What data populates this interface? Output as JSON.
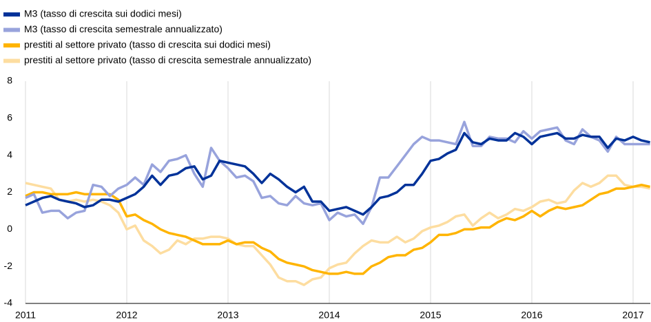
{
  "chart_data": {
    "type": "line",
    "x": [
      2011.0,
      2011.083,
      2011.167,
      2011.25,
      2011.333,
      2011.417,
      2011.5,
      2011.583,
      2011.667,
      2011.75,
      2011.833,
      2011.917,
      2012.0,
      2012.083,
      2012.167,
      2012.25,
      2012.333,
      2012.417,
      2012.5,
      2012.583,
      2012.667,
      2012.75,
      2012.833,
      2012.917,
      2013.0,
      2013.083,
      2013.167,
      2013.25,
      2013.333,
      2013.417,
      2013.5,
      2013.583,
      2013.667,
      2013.75,
      2013.833,
      2013.917,
      2014.0,
      2014.083,
      2014.167,
      2014.25,
      2014.333,
      2014.417,
      2014.5,
      2014.583,
      2014.667,
      2014.75,
      2014.833,
      2014.917,
      2015.0,
      2015.083,
      2015.167,
      2015.25,
      2015.333,
      2015.417,
      2015.5,
      2015.583,
      2015.667,
      2015.75,
      2015.833,
      2015.917,
      2016.0,
      2016.083,
      2016.167,
      2016.25,
      2016.333,
      2016.417,
      2016.5,
      2016.583,
      2016.667,
      2016.75,
      2016.833,
      2016.917,
      2017.0,
      2017.083,
      2017.167
    ],
    "series": [
      {
        "name": "M3 (tasso di crescita sui dodici mesi)",
        "color": "#003299",
        "values": [
          1.3,
          1.5,
          1.7,
          1.8,
          1.6,
          1.5,
          1.4,
          1.2,
          1.3,
          1.6,
          1.6,
          1.5,
          1.7,
          1.9,
          2.3,
          2.9,
          2.4,
          2.9,
          3.0,
          3.3,
          3.4,
          2.7,
          2.9,
          3.7,
          3.6,
          3.5,
          3.4,
          3.0,
          2.5,
          3.0,
          2.7,
          2.3,
          2.0,
          2.3,
          1.5,
          1.5,
          1.0,
          1.1,
          1.2,
          1.0,
          0.8,
          1.2,
          1.7,
          1.8,
          2.0,
          2.4,
          2.4,
          3.0,
          3.7,
          3.8,
          4.1,
          4.3,
          5.2,
          4.7,
          4.6,
          4.9,
          4.8,
          4.8,
          5.2,
          5.0,
          4.6,
          5.0,
          5.1,
          5.2,
          4.9,
          4.9,
          5.1,
          5.0,
          5.0,
          4.4,
          4.9,
          4.8,
          5.0,
          4.8,
          4.7
        ]
      },
      {
        "name": "M3 (tasso di crescita semestrale annualizzato)",
        "color": "#98a3dc",
        "values": [
          1.7,
          1.9,
          0.9,
          1.0,
          1.0,
          0.6,
          0.9,
          1.0,
          2.4,
          2.3,
          1.8,
          2.2,
          2.4,
          2.8,
          2.4,
          3.5,
          3.1,
          3.7,
          3.8,
          4.0,
          3.0,
          2.3,
          4.4,
          3.7,
          3.3,
          2.8,
          2.9,
          2.6,
          1.7,
          1.8,
          1.4,
          1.3,
          1.8,
          1.4,
          1.3,
          1.4,
          0.5,
          0.9,
          0.7,
          0.8,
          0.3,
          1.2,
          2.8,
          2.8,
          3.4,
          4.0,
          4.6,
          5.0,
          4.8,
          4.8,
          4.7,
          4.6,
          5.8,
          4.5,
          4.5,
          5.0,
          4.9,
          4.9,
          4.7,
          5.3,
          4.9,
          5.3,
          5.4,
          5.5,
          4.8,
          4.6,
          5.4,
          5.0,
          4.8,
          4.2,
          5.0,
          4.6,
          4.6,
          4.6,
          4.6
        ]
      },
      {
        "name": "prestiti al settore privato (tasso di crescita sui dodici mesi)",
        "color": "#ffb400",
        "values": [
          1.8,
          2.0,
          2.0,
          1.9,
          1.9,
          1.9,
          2.0,
          1.9,
          1.9,
          1.9,
          1.9,
          1.6,
          0.7,
          0.8,
          0.5,
          0.3,
          0.0,
          -0.2,
          -0.3,
          -0.4,
          -0.6,
          -0.8,
          -0.8,
          -0.8,
          -0.6,
          -0.8,
          -0.7,
          -0.7,
          -1.0,
          -1.2,
          -1.6,
          -1.8,
          -1.9,
          -2.0,
          -2.2,
          -2.3,
          -2.4,
          -2.4,
          -2.3,
          -2.4,
          -2.4,
          -2.0,
          -1.8,
          -1.5,
          -1.4,
          -1.4,
          -1.1,
          -1.0,
          -0.7,
          -0.3,
          -0.3,
          -0.2,
          0.0,
          0.0,
          0.1,
          0.1,
          0.4,
          0.6,
          0.5,
          0.7,
          1.0,
          0.7,
          1.0,
          1.2,
          1.1,
          1.2,
          1.3,
          1.6,
          1.9,
          2.0,
          2.2,
          2.2,
          2.3,
          2.4,
          2.3
        ]
      },
      {
        "name": "prestiti al settore privato (tasso di crescita semestrale annualizzato)",
        "color": "#fddda0",
        "values": [
          2.5,
          2.4,
          2.3,
          2.2,
          1.6,
          1.5,
          1.6,
          1.5,
          1.6,
          1.5,
          1.3,
          0.9,
          0.0,
          0.2,
          -0.6,
          -0.9,
          -1.3,
          -1.1,
          -0.6,
          -0.8,
          -0.5,
          -0.5,
          -0.4,
          -0.4,
          -0.5,
          -0.8,
          -0.9,
          -0.9,
          -1.4,
          -1.9,
          -2.6,
          -2.8,
          -2.8,
          -3.0,
          -2.7,
          -2.6,
          -2.1,
          -1.9,
          -1.8,
          -1.3,
          -0.9,
          -0.6,
          -0.7,
          -0.7,
          -0.4,
          -0.7,
          -0.5,
          -0.1,
          0.1,
          0.2,
          0.4,
          0.7,
          0.8,
          0.2,
          0.6,
          0.9,
          0.6,
          0.8,
          1.1,
          1.0,
          1.2,
          1.5,
          1.6,
          1.4,
          1.5,
          2.1,
          2.5,
          2.3,
          2.5,
          2.9,
          2.9,
          2.4,
          2.3,
          2.3,
          2.2
        ]
      }
    ],
    "xlim": [
      2011,
      2017.17
    ],
    "xticks": [
      2011,
      2012,
      2013,
      2014,
      2015,
      2016,
      2017
    ],
    "ylim": [
      -4,
      8
    ],
    "yticks": [
      -4,
      -2,
      0,
      2,
      4,
      6,
      8
    ],
    "grid": true
  }
}
